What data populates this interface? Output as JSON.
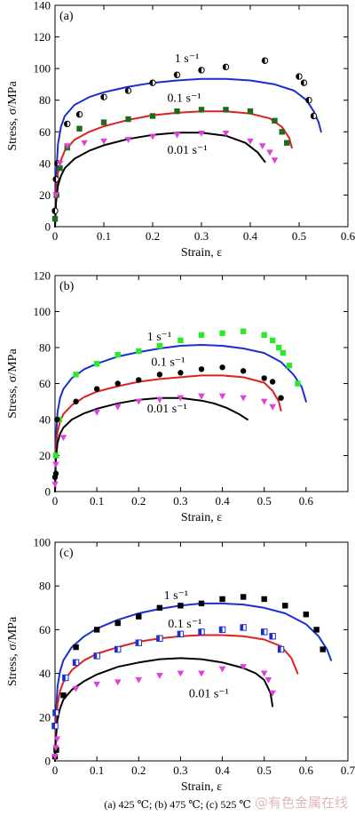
{
  "figure_caption": "(a) 425 ℃; (b) 475 ℃; (c) 525 ℃",
  "watermark": "@有色金属在线",
  "colors": {
    "blue": "#1a2fd0",
    "red": "#e02020",
    "black": "#000000",
    "green": "#2ee82e",
    "magenta": "#e040e0",
    "darkgreen": "#1e6b1e"
  },
  "chart_data": [
    {
      "type": "line",
      "panel": "(a)",
      "xlabel": "Strain, ε",
      "ylabel": "Stress, σ/MPa",
      "xlim": [
        0,
        0.6
      ],
      "ylim": [
        0,
        140
      ],
      "xticks": [
        0,
        0.1,
        0.2,
        0.3,
        0.4,
        0.5,
        0.6
      ],
      "xtick_labels": [
        "0",
        "0.1",
        "0.2",
        "0.3",
        "0.4",
        "0.5",
        "0.6"
      ],
      "yticks": [
        0,
        20,
        40,
        60,
        80,
        100,
        120,
        140
      ],
      "ytick_labels": [
        "0",
        "20",
        "40",
        "60",
        "80",
        "100",
        "120",
        "140"
      ],
      "grid": false,
      "series": [
        {
          "name": "1 s⁻¹",
          "label_at": [
            0.245,
            104
          ],
          "color": "blue",
          "x": [
            0,
            0.002,
            0.006,
            0.012,
            0.02,
            0.04,
            0.07,
            0.1,
            0.15,
            0.2,
            0.25,
            0.3,
            0.35,
            0.4,
            0.45,
            0.49,
            0.515,
            0.53,
            0.54,
            0.545
          ],
          "y": [
            0,
            30,
            52,
            63,
            70,
            77,
            82,
            85,
            88.5,
            91,
            92.5,
            93.5,
            93.5,
            92.5,
            90,
            86,
            80,
            73,
            66,
            60
          ]
        },
        {
          "name": "0.1 s⁻¹",
          "label_at": [
            0.23,
            79
          ],
          "color": "red",
          "x": [
            0,
            0.002,
            0.006,
            0.012,
            0.02,
            0.04,
            0.07,
            0.1,
            0.15,
            0.2,
            0.25,
            0.3,
            0.35,
            0.4,
            0.44,
            0.465,
            0.48,
            0.485
          ],
          "y": [
            0,
            20,
            34,
            42,
            48,
            55,
            60,
            63.5,
            67.5,
            70.5,
            72,
            73,
            73,
            71.5,
            68.5,
            63,
            56,
            50
          ]
        },
        {
          "name": "0.01 s⁻¹",
          "label_at": [
            0.23,
            46
          ],
          "color": "black",
          "x": [
            0,
            0.002,
            0.006,
            0.012,
            0.02,
            0.04,
            0.07,
            0.1,
            0.15,
            0.2,
            0.25,
            0.3,
            0.35,
            0.39,
            0.415,
            0.43
          ],
          "y": [
            0,
            15,
            26,
            32,
            37,
            43,
            48,
            51.5,
            55.5,
            58,
            59.5,
            59.5,
            57.5,
            53,
            47,
            41
          ]
        }
      ],
      "markers": [
        {
          "shape": "circle-half",
          "color": "black",
          "x": [
            0,
            0.002,
            0.005,
            0.025,
            0.05,
            0.1,
            0.15,
            0.2,
            0.25,
            0.3,
            0.35,
            0.43,
            0.5,
            0.51,
            0.52,
            0.53
          ],
          "y": [
            10,
            30,
            40,
            65,
            71,
            82,
            86,
            91,
            96,
            99,
            101,
            105,
            95,
            91,
            80,
            70
          ]
        },
        {
          "shape": "square",
          "color": "darkgreen",
          "x": [
            0,
            0.003,
            0.01,
            0.025,
            0.05,
            0.1,
            0.15,
            0.2,
            0.25,
            0.3,
            0.35,
            0.4,
            0.45,
            0.465,
            0.475
          ],
          "y": [
            5,
            20,
            37,
            50,
            62,
            66,
            68,
            70,
            73,
            74,
            74,
            73,
            67,
            60,
            53
          ]
        },
        {
          "shape": "triangle-down",
          "color": "magenta",
          "x": [
            0.002,
            0.01,
            0.025,
            0.06,
            0.1,
            0.15,
            0.2,
            0.25,
            0.3,
            0.35,
            0.4,
            0.425,
            0.44,
            0.45
          ],
          "y": [
            20,
            40,
            51,
            53,
            54,
            55,
            57,
            58,
            59,
            59,
            54,
            51,
            47,
            42
          ]
        }
      ]
    },
    {
      "type": "line",
      "panel": "(b)",
      "xlabel": "Strain, ε",
      "ylabel": "Stress, σ/MPa",
      "xlim": [
        0,
        0.7
      ],
      "ylim": [
        0,
        120
      ],
      "xticks": [
        0,
        0.1,
        0.2,
        0.3,
        0.4,
        0.5,
        0.6
      ],
      "xtick_labels": [
        "0",
        "0.1",
        "0.2",
        "0.3",
        "0.4",
        "0.5",
        "0.6"
      ],
      "yticks": [
        0,
        20,
        40,
        60,
        80,
        100,
        120
      ],
      "ytick_labels": [
        "0",
        "20",
        "40",
        "60",
        "80",
        "100",
        "120"
      ],
      "grid": false,
      "series": [
        {
          "name": "1 s⁻¹",
          "label_at": [
            0.22,
            84
          ],
          "color": "blue",
          "x": [
            0,
            0.002,
            0.006,
            0.012,
            0.02,
            0.04,
            0.07,
            0.1,
            0.15,
            0.2,
            0.25,
            0.3,
            0.35,
            0.4,
            0.45,
            0.5,
            0.54,
            0.57,
            0.59,
            0.6
          ],
          "y": [
            0,
            28,
            44,
            52,
            57,
            63,
            68,
            71,
            75,
            77.5,
            79.5,
            81,
            81.5,
            81,
            79.5,
            77,
            72,
            65,
            58,
            50
          ]
        },
        {
          "name": "0.1 s⁻¹",
          "label_at": [
            0.23,
            70
          ],
          "color": "red",
          "x": [
            0,
            0.002,
            0.006,
            0.012,
            0.02,
            0.04,
            0.07,
            0.1,
            0.15,
            0.2,
            0.25,
            0.3,
            0.35,
            0.4,
            0.45,
            0.5,
            0.52,
            0.535,
            0.54
          ],
          "y": [
            0,
            22,
            33,
            39,
            43,
            48,
            52.5,
            55.5,
            58.5,
            61,
            62.5,
            63.5,
            64.5,
            64.5,
            63.5,
            60.5,
            56,
            50,
            45
          ]
        },
        {
          "name": "0.01 s⁻¹",
          "label_at": [
            0.22,
            44
          ],
          "color": "black",
          "x": [
            0,
            0.002,
            0.006,
            0.012,
            0.02,
            0.04,
            0.07,
            0.1,
            0.15,
            0.2,
            0.25,
            0.3,
            0.35,
            0.38,
            0.41,
            0.44,
            0.46
          ],
          "y": [
            0,
            18,
            27,
            32,
            35.5,
            40,
            43.5,
            46,
            49,
            51,
            52,
            52,
            50.5,
            49,
            46.5,
            43,
            40
          ]
        }
      ],
      "markers": [
        {
          "shape": "square",
          "color": "green",
          "x": [
            0.002,
            0.01,
            0.05,
            0.1,
            0.15,
            0.2,
            0.25,
            0.3,
            0.35,
            0.4,
            0.45,
            0.5,
            0.52,
            0.535,
            0.545,
            0.56,
            0.58
          ],
          "y": [
            20,
            40,
            65,
            71,
            76,
            78,
            81,
            84,
            87,
            88,
            89,
            87,
            84,
            80,
            77,
            70,
            60
          ]
        },
        {
          "shape": "circle",
          "color": "black",
          "x": [
            0,
            0.002,
            0.005,
            0.05,
            0.1,
            0.15,
            0.2,
            0.25,
            0.3,
            0.35,
            0.4,
            0.45,
            0.5,
            0.52,
            0.54
          ],
          "y": [
            8,
            10,
            40,
            50,
            57,
            60,
            62,
            65,
            66,
            68,
            69,
            67,
            63,
            61,
            52
          ]
        },
        {
          "shape": "triangle-down",
          "color": "magenta",
          "x": [
            0,
            0.002,
            0.02,
            0.1,
            0.15,
            0.2,
            0.25,
            0.3,
            0.35,
            0.4,
            0.45,
            0.5,
            0.52
          ],
          "y": [
            4,
            15,
            30,
            44,
            47,
            50,
            51,
            52,
            53,
            53,
            52,
            50,
            47
          ]
        }
      ]
    },
    {
      "type": "line",
      "panel": "(c)",
      "xlabel": "Strain, ε",
      "ylabel": "Stress, σ/MPa",
      "xlim": [
        0,
        0.7
      ],
      "ylim": [
        0,
        100
      ],
      "xticks": [
        0,
        0.1,
        0.2,
        0.3,
        0.4,
        0.5,
        0.6,
        0.7
      ],
      "xtick_labels": [
        "0",
        "0.1",
        "0.2",
        "0.3",
        "0.4",
        "0.5",
        "0.6",
        "0.7"
      ],
      "yticks": [
        0,
        20,
        40,
        60,
        80,
        100
      ],
      "ytick_labels": [
        "0",
        "20",
        "40",
        "60",
        "80",
        "100"
      ],
      "grid": false,
      "series": [
        {
          "name": "1 s⁻¹",
          "label_at": [
            0.26,
            74
          ],
          "color": "blue",
          "x": [
            0,
            0.002,
            0.006,
            0.012,
            0.02,
            0.04,
            0.07,
            0.1,
            0.15,
            0.2,
            0.25,
            0.3,
            0.35,
            0.4,
            0.45,
            0.5,
            0.55,
            0.6,
            0.63,
            0.65,
            0.66
          ],
          "y": [
            0,
            20,
            34,
            41,
            46,
            52,
            57,
            60.5,
            64.5,
            67.5,
            69.5,
            71,
            72,
            72,
            71.5,
            70,
            67.5,
            62.5,
            57,
            51,
            46
          ]
        },
        {
          "name": "0.1 s⁻¹",
          "label_at": [
            0.27,
            61
          ],
          "color": "red",
          "x": [
            0,
            0.002,
            0.006,
            0.012,
            0.02,
            0.04,
            0.07,
            0.1,
            0.15,
            0.2,
            0.25,
            0.3,
            0.35,
            0.4,
            0.45,
            0.5,
            0.54,
            0.565,
            0.58
          ],
          "y": [
            0,
            15,
            26,
            32,
            36,
            41.5,
            46,
            49,
            52,
            54.5,
            56,
            57,
            57.5,
            57.5,
            57,
            55.5,
            52.5,
            47,
            40
          ]
        },
        {
          "name": "0.01 s⁻¹",
          "label_at": [
            0.32,
            29
          ],
          "color": "black",
          "x": [
            0,
            0.002,
            0.006,
            0.012,
            0.02,
            0.04,
            0.07,
            0.1,
            0.15,
            0.2,
            0.25,
            0.3,
            0.35,
            0.4,
            0.45,
            0.48,
            0.5,
            0.515,
            0.52
          ],
          "y": [
            0,
            10,
            19,
            24,
            28,
            32.5,
            36.5,
            39.5,
            43,
            45,
            46.5,
            47,
            46.5,
            45,
            42.5,
            40,
            37,
            31,
            25
          ]
        }
      ],
      "markers": [
        {
          "shape": "square",
          "color": "black",
          "x": [
            0,
            0.003,
            0.02,
            0.05,
            0.1,
            0.15,
            0.2,
            0.25,
            0.3,
            0.35,
            0.4,
            0.45,
            0.5,
            0.55,
            0.6,
            0.625,
            0.64
          ],
          "y": [
            2,
            5,
            30,
            52,
            60,
            63,
            66,
            70,
            71,
            72,
            74,
            75,
            74,
            71,
            67,
            60,
            51
          ]
        },
        {
          "shape": "square-half",
          "color": "blue",
          "x": [
            0,
            0.002,
            0.025,
            0.05,
            0.1,
            0.15,
            0.2,
            0.25,
            0.3,
            0.35,
            0.4,
            0.45,
            0.5,
            0.52,
            0.54
          ],
          "y": [
            16,
            22,
            38,
            45,
            48,
            51,
            54,
            56,
            58,
            59,
            60,
            61,
            59,
            57,
            51
          ]
        },
        {
          "shape": "triangle-down",
          "color": "magenta",
          "x": [
            0,
            0.002,
            0.005,
            0.05,
            0.1,
            0.15,
            0.2,
            0.25,
            0.3,
            0.35,
            0.4,
            0.45,
            0.5,
            0.51,
            0.52
          ],
          "y": [
            2,
            6,
            10,
            33,
            35,
            36,
            37,
            39,
            40,
            40,
            42,
            43,
            40,
            37,
            31
          ]
        }
      ]
    }
  ]
}
